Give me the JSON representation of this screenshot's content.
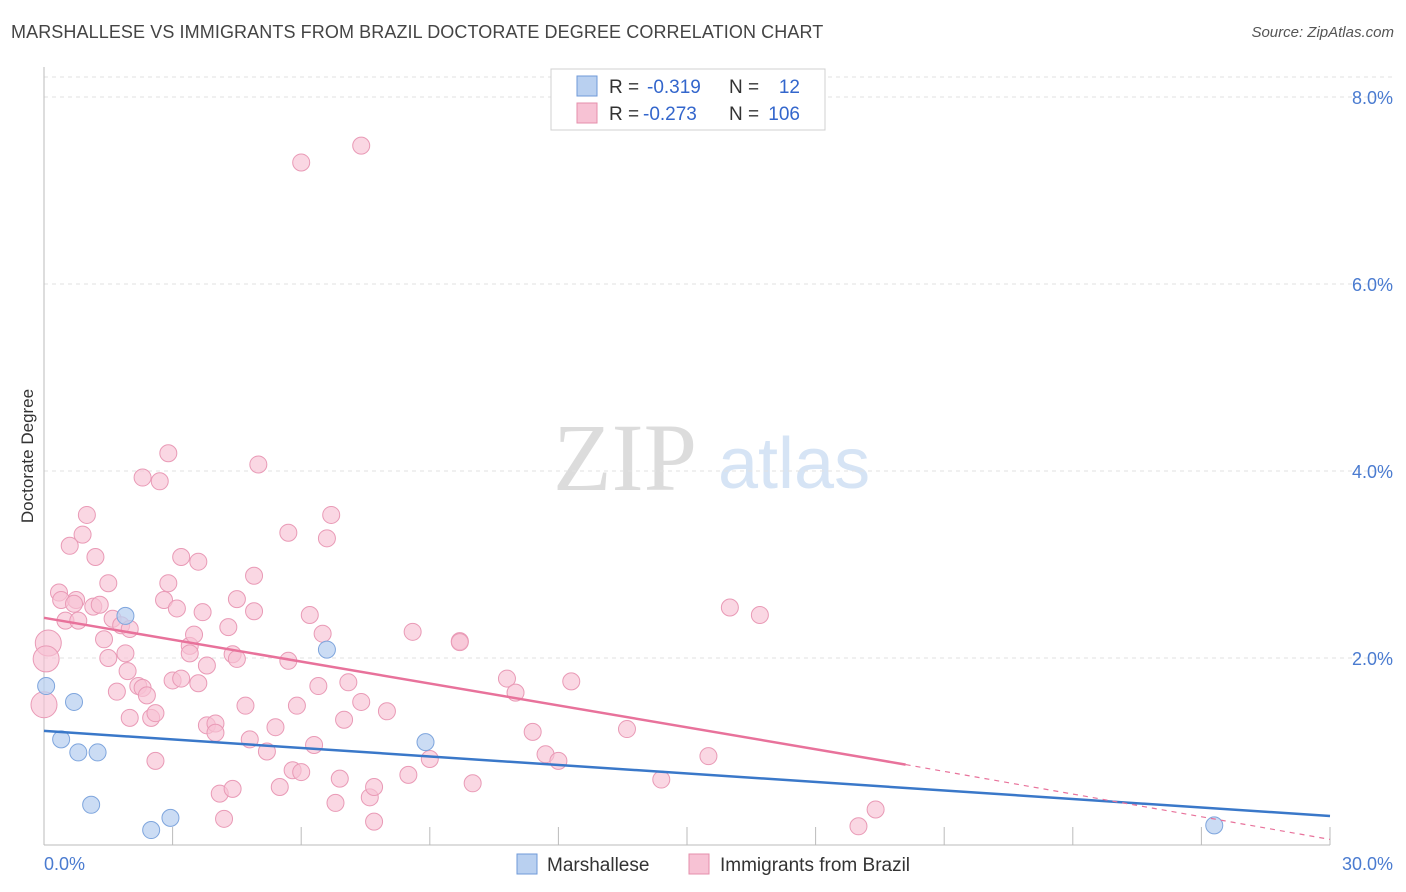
{
  "header": {
    "title": "MARSHALLESE VS IMMIGRANTS FROM BRAZIL DOCTORATE DEGREE CORRELATION CHART",
    "source": "Source: ZipAtlas.com"
  },
  "watermark": {
    "zip": "ZIP",
    "atlas": "atlas"
  },
  "legend": {
    "rows": [
      {
        "r_label": "R =",
        "r_value": "-0.319",
        "n_label": "N =",
        "n_value": "12"
      },
      {
        "r_label": "R =",
        "r_value": "-0.273",
        "n_label": "N =",
        "n_value": "106"
      }
    ]
  },
  "bottom_legend": {
    "series1": "Marshallese",
    "series2": "Immigrants from Brazil"
  },
  "chart_data": {
    "type": "scatter",
    "title": "MARSHALLESE VS IMMIGRANTS FROM BRAZIL DOCTORATE DEGREE CORRELATION CHART",
    "xlabel": "",
    "ylabel": "Doctorate Degree",
    "xlim": [
      0,
      30
    ],
    "ylim": [
      0,
      8
    ],
    "x_tick_labels": [
      "0.0%",
      "30.0%"
    ],
    "y_ticks": [
      2,
      4,
      6,
      8
    ],
    "y_tick_labels": [
      "2.0%",
      "4.0%",
      "6.0%",
      "8.0%"
    ],
    "grid": true,
    "colors": {
      "marshallese": "#3a78c9",
      "brazil": "#e8729b",
      "marshallese_fill": "#b9d0f0",
      "brazil_fill": "#f7c2d4"
    },
    "series": [
      {
        "name": "Marshallese",
        "trend": {
          "x0": 0,
          "y0": 1.22,
          "x1": 30,
          "y1": 0.31
        },
        "points": [
          [
            0.05,
            1.7
          ],
          [
            0.7,
            1.53
          ],
          [
            0.4,
            1.13
          ],
          [
            0.8,
            0.99
          ],
          [
            1.25,
            0.99
          ],
          [
            1.1,
            0.43
          ],
          [
            1.9,
            2.45
          ],
          [
            2.5,
            0.16
          ],
          [
            2.95,
            0.29
          ],
          [
            6.6,
            2.09
          ],
          [
            8.9,
            1.1
          ],
          [
            27.3,
            0.21
          ]
        ]
      },
      {
        "name": "Immigrants from Brazil",
        "trend": {
          "x0": 0,
          "y0": 2.43,
          "x1": 20.1,
          "y1": 0.86,
          "dash_x1": 30,
          "dash_y1": 0.06
        },
        "points": [
          [
            0.1,
            2.16
          ],
          [
            0.05,
            1.99
          ],
          [
            0.0,
            1.5
          ],
          [
            0.35,
            2.7
          ],
          [
            0.4,
            2.62
          ],
          [
            0.5,
            2.4
          ],
          [
            0.6,
            3.2
          ],
          [
            0.9,
            3.32
          ],
          [
            1.0,
            3.53
          ],
          [
            0.8,
            2.4
          ],
          [
            0.75,
            2.62
          ],
          [
            0.7,
            2.58
          ],
          [
            1.2,
            3.08
          ],
          [
            1.15,
            2.55
          ],
          [
            1.3,
            2.57
          ],
          [
            1.5,
            2.8
          ],
          [
            1.6,
            2.42
          ],
          [
            1.4,
            2.2
          ],
          [
            1.5,
            2.0
          ],
          [
            1.7,
            1.64
          ],
          [
            1.8,
            2.35
          ],
          [
            2.0,
            2.31
          ],
          [
            1.9,
            2.05
          ],
          [
            1.95,
            1.86
          ],
          [
            2.2,
            1.7
          ],
          [
            2.3,
            1.68
          ],
          [
            2.0,
            1.36
          ],
          [
            2.4,
            1.6
          ],
          [
            2.5,
            1.36
          ],
          [
            2.6,
            1.41
          ],
          [
            2.6,
            0.9
          ],
          [
            2.3,
            3.93
          ],
          [
            2.7,
            3.89
          ],
          [
            2.9,
            4.19
          ],
          [
            2.8,
            2.62
          ],
          [
            2.9,
            2.8
          ],
          [
            3.1,
            2.53
          ],
          [
            3.2,
            3.08
          ],
          [
            3.0,
            1.76
          ],
          [
            3.2,
            1.78
          ],
          [
            3.4,
            2.13
          ],
          [
            3.5,
            2.25
          ],
          [
            3.4,
            2.05
          ],
          [
            3.6,
            3.03
          ],
          [
            3.7,
            2.49
          ],
          [
            3.6,
            1.73
          ],
          [
            3.8,
            1.92
          ],
          [
            3.8,
            1.28
          ],
          [
            4.0,
            1.3
          ],
          [
            4.0,
            1.2
          ],
          [
            4.1,
            0.55
          ],
          [
            4.2,
            0.28
          ],
          [
            4.3,
            2.33
          ],
          [
            4.4,
            2.04
          ],
          [
            4.4,
            0.6
          ],
          [
            4.5,
            2.63
          ],
          [
            4.5,
            1.99
          ],
          [
            4.7,
            1.49
          ],
          [
            4.8,
            1.13
          ],
          [
            4.9,
            2.5
          ],
          [
            4.9,
            2.88
          ],
          [
            5.0,
            4.07
          ],
          [
            5.2,
            1.0
          ],
          [
            5.4,
            1.26
          ],
          [
            5.5,
            0.62
          ],
          [
            5.7,
            3.34
          ],
          [
            5.7,
            1.97
          ],
          [
            5.8,
            0.8
          ],
          [
            5.9,
            1.49
          ],
          [
            6.0,
            0.78
          ],
          [
            6.0,
            7.3
          ],
          [
            6.2,
            2.46
          ],
          [
            6.3,
            1.07
          ],
          [
            6.4,
            1.7
          ],
          [
            6.5,
            2.26
          ],
          [
            6.6,
            3.28
          ],
          [
            6.8,
            0.45
          ],
          [
            6.7,
            3.53
          ],
          [
            6.9,
            0.71
          ],
          [
            7.0,
            1.34
          ],
          [
            7.1,
            1.74
          ],
          [
            7.4,
            1.53
          ],
          [
            7.4,
            7.48
          ],
          [
            7.6,
            0.51
          ],
          [
            7.7,
            0.62
          ],
          [
            7.7,
            0.25
          ],
          [
            8.0,
            1.43
          ],
          [
            8.5,
            0.75
          ],
          [
            8.6,
            2.28
          ],
          [
            9.0,
            0.92
          ],
          [
            9.7,
            2.18
          ],
          [
            9.7,
            2.17
          ],
          [
            10.0,
            0.66
          ],
          [
            10.8,
            1.78
          ],
          [
            11.0,
            1.63
          ],
          [
            11.4,
            1.21
          ],
          [
            11.7,
            0.97
          ],
          [
            12.0,
            0.9
          ],
          [
            12.3,
            1.75
          ],
          [
            13.6,
            1.24
          ],
          [
            14.4,
            0.7
          ],
          [
            15.5,
            0.95
          ],
          [
            16.0,
            2.54
          ],
          [
            16.7,
            2.46
          ],
          [
            19.4,
            0.38
          ],
          [
            19.0,
            0.2
          ]
        ]
      }
    ]
  }
}
